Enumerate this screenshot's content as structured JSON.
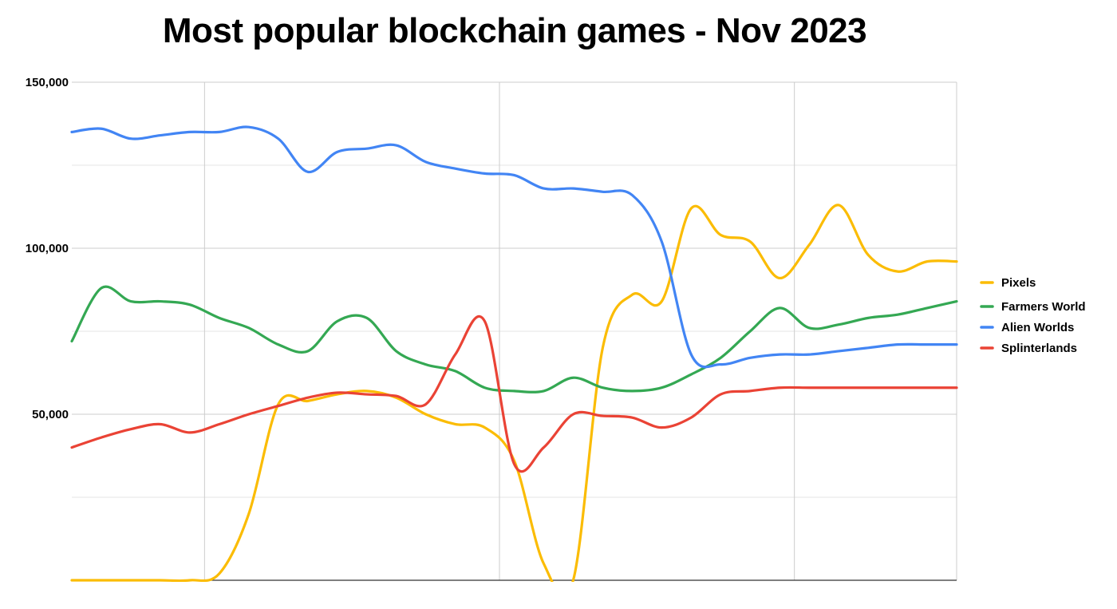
{
  "chart_data": {
    "type": "line",
    "title": "Most popular blockchain games - Nov 2023",
    "xlabel": "",
    "ylabel": "",
    "ylim": [
      0,
      150000
    ],
    "yticks": [
      {
        "value": 50000,
        "label": "50,000"
      },
      {
        "value": 100000,
        "label": "100,000"
      },
      {
        "value": 150000,
        "label": "150,000"
      }
    ],
    "y_minor_gridlines": [
      25000,
      75000,
      125000
    ],
    "x_point_count": 31,
    "x_vertical_gridlines_at_index": [
      4.5,
      14.5,
      24.5
    ],
    "grid": true,
    "legend_position": "right",
    "series": [
      {
        "name": "Pixels",
        "color": "#fbbc04",
        "values": [
          0,
          0,
          0,
          0,
          0,
          2000,
          20000,
          53000,
          54000,
          56000,
          57000,
          55000,
          50000,
          47000,
          46000,
          36000,
          5000,
          0,
          70000,
          86000,
          84000,
          112000,
          104000,
          102000,
          91000,
          101000,
          113000,
          98000,
          93000,
          96000,
          96000
        ]
      },
      {
        "name": "Farmers World",
        "color": "#34a853",
        "values": [
          72000,
          88000,
          84000,
          84000,
          83000,
          79000,
          76000,
          71000,
          69000,
          78000,
          79000,
          69000,
          65000,
          63000,
          58000,
          57000,
          57000,
          61000,
          58000,
          57000,
          58000,
          62000,
          67000,
          75000,
          82000,
          76000,
          77000,
          79000,
          80000,
          82000,
          84000
        ]
      },
      {
        "name": "Alien Worlds",
        "color": "#4285f4",
        "values": [
          135000,
          136000,
          133000,
          134000,
          135000,
          135000,
          136500,
          133000,
          123000,
          129000,
          130000,
          131000,
          126000,
          124000,
          122500,
          122000,
          118000,
          118000,
          117000,
          116000,
          102000,
          68000,
          65000,
          67000,
          68000,
          68000,
          69000,
          70000,
          71000,
          71000,
          71000
        ]
      },
      {
        "name": "Splinterlands",
        "color": "#ea4335",
        "values": [
          40000,
          43000,
          45500,
          47000,
          44500,
          47000,
          50000,
          52500,
          55000,
          56500,
          56000,
          55500,
          53000,
          68000,
          78000,
          35000,
          40000,
          50000,
          49500,
          49000,
          46000,
          49000,
          56000,
          57000,
          58000,
          58000,
          58000,
          58000,
          58000,
          58000,
          58000
        ]
      }
    ]
  }
}
